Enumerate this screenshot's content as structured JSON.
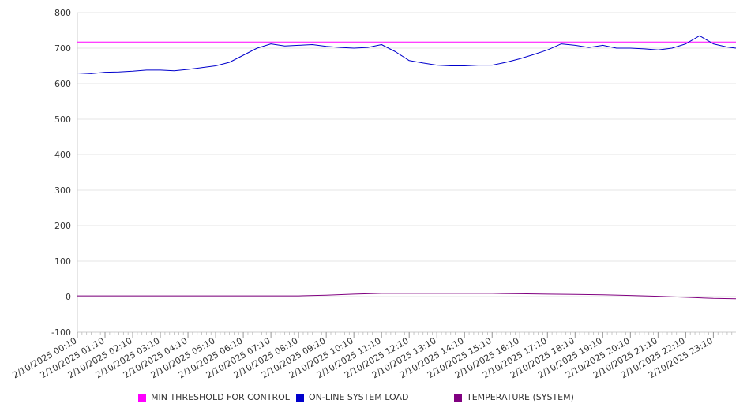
{
  "chart_data": {
    "type": "line",
    "title": "",
    "xlabel": "",
    "ylabel": "",
    "ylim": [
      -100,
      800
    ],
    "yticks": [
      -100,
      0,
      100,
      200,
      300,
      400,
      500,
      600,
      700,
      800
    ],
    "grid": "horizontal",
    "legend_position": "bottom",
    "x_labels": [
      "2/10/2025 00:10",
      "2/10/2025 01:10",
      "2/10/2025 02:10",
      "2/10/2025 03:10",
      "2/10/2025 04:10",
      "2/10/2025 05:10",
      "2/10/2025 06:10",
      "2/10/2025 07:10",
      "2/10/2025 08:10",
      "2/10/2025 09:10",
      "2/10/2025 10:10",
      "2/10/2025 11:10",
      "2/10/2025 12:10",
      "2/10/2025 13:10",
      "2/10/2025 14:10",
      "2/10/2025 15:10",
      "2/10/2025 16:10",
      "2/10/2025 17:10",
      "2/10/2025 18:10",
      "2/10/2025 19:10",
      "2/10/2025 20:10",
      "2/10/2025 21:10",
      "2/10/2025 22:10",
      "2/10/2025 23:10"
    ],
    "series": [
      {
        "name": "MIN THRESHOLD FOR CONTROL",
        "color": "#ff00ff",
        "x": [
          "00:10",
          "23:59"
        ],
        "values": [
          717,
          717
        ]
      },
      {
        "name": "ON-LINE SYSTEM LOAD",
        "color": "#0000cc",
        "x": [
          "00:10",
          "00:40",
          "01:10",
          "01:40",
          "02:10",
          "02:40",
          "03:10",
          "03:40",
          "04:10",
          "04:40",
          "05:10",
          "05:40",
          "06:10",
          "06:40",
          "07:10",
          "07:40",
          "08:10",
          "08:40",
          "09:10",
          "09:40",
          "10:10",
          "10:40",
          "11:10",
          "11:40",
          "12:10",
          "12:40",
          "13:10",
          "13:40",
          "14:10",
          "14:40",
          "15:10",
          "15:40",
          "16:10",
          "16:40",
          "17:10",
          "17:40",
          "18:10",
          "18:40",
          "19:10",
          "19:40",
          "20:10",
          "20:40",
          "21:10",
          "21:40",
          "22:10",
          "22:40",
          "23:10",
          "23:40",
          "23:59"
        ],
        "values": [
          630,
          628,
          632,
          633,
          635,
          638,
          638,
          636,
          640,
          645,
          650,
          660,
          680,
          700,
          712,
          706,
          708,
          710,
          705,
          702,
          700,
          702,
          710,
          690,
          665,
          658,
          652,
          650,
          650,
          652,
          652,
          660,
          670,
          682,
          695,
          712,
          708,
          702,
          708,
          700,
          700,
          698,
          695,
          700,
          712,
          735,
          712,
          703,
          700
        ]
      },
      {
        "name": "TEMPERATURE (SYSTEM)",
        "color": "#800080",
        "x": [
          "00:10",
          "02:10",
          "04:10",
          "06:10",
          "08:10",
          "09:10",
          "10:10",
          "11:10",
          "13:10",
          "15:10",
          "16:10",
          "17:10",
          "18:10",
          "19:10",
          "20:10",
          "21:10",
          "22:10",
          "23:10",
          "23:59"
        ],
        "values": [
          2,
          2,
          2,
          2,
          2,
          4,
          7,
          9,
          9,
          9,
          8,
          7,
          6,
          5,
          3,
          1,
          -2,
          -5,
          -6
        ]
      }
    ]
  }
}
